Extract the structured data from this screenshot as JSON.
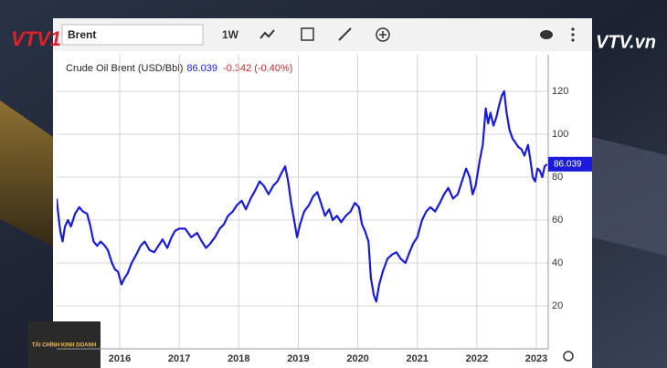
{
  "ui": {
    "search": "Brent",
    "interval": "1W",
    "channel_logo": "VTV1",
    "watermark": "VTV.vn",
    "program": "TÀI CHÍNH KINH DOANH"
  },
  "chart_data": {
    "type": "line",
    "title": "Crude Oil Brent (USD/Bbl)",
    "last_value": 86.039,
    "change_text": "-0.342 (-0.40%)",
    "xlim": [
      2014.94,
      2023.2
    ],
    "xticks": [
      2016,
      2017,
      2018,
      2019,
      2020,
      2021,
      2022,
      2023
    ],
    "ylim": [
      0,
      137
    ],
    "yticks": [
      20,
      40,
      60,
      80,
      100,
      120
    ],
    "grid": true,
    "series": [
      {
        "name": "Brent",
        "color": "#1a1adb",
        "x": [
          2014.94,
          2014.97,
          2015.0,
          2015.04,
          2015.08,
          2015.13,
          2015.18,
          2015.25,
          2015.32,
          2015.38,
          2015.45,
          2015.5,
          2015.56,
          2015.62,
          2015.68,
          2015.75,
          2015.8,
          2015.87,
          2015.92,
          2015.97,
          2016.03,
          2016.08,
          2016.13,
          2016.2,
          2016.28,
          2016.35,
          2016.42,
          2016.5,
          2016.58,
          2016.65,
          2016.72,
          2016.8,
          2016.87,
          2016.93,
          2017.0,
          2017.1,
          2017.2,
          2017.3,
          2017.38,
          2017.45,
          2017.52,
          2017.6,
          2017.68,
          2017.75,
          2017.82,
          2017.9,
          2017.97,
          2018.05,
          2018.12,
          2018.2,
          2018.28,
          2018.35,
          2018.42,
          2018.5,
          2018.58,
          2018.65,
          2018.72,
          2018.78,
          2018.83,
          2018.88,
          2018.93,
          2018.98,
          2019.03,
          2019.1,
          2019.18,
          2019.25,
          2019.32,
          2019.38,
          2019.45,
          2019.52,
          2019.58,
          2019.65,
          2019.72,
          2019.8,
          2019.88,
          2019.95,
          2020.02,
          2020.07,
          2020.12,
          2020.18,
          2020.22,
          2020.27,
          2020.31,
          2020.36,
          2020.42,
          2020.5,
          2020.58,
          2020.65,
          2020.72,
          2020.8,
          2020.87,
          2020.93,
          2021.0,
          2021.08,
          2021.15,
          2021.22,
          2021.3,
          2021.38,
          2021.45,
          2021.52,
          2021.6,
          2021.68,
          2021.75,
          2021.82,
          2021.88,
          2021.93,
          2021.98,
          2022.05,
          2022.1,
          2022.15,
          2022.19,
          2022.23,
          2022.28,
          2022.33,
          2022.38,
          2022.42,
          2022.46,
          2022.5,
          2022.55,
          2022.6,
          2022.65,
          2022.7,
          2022.75,
          2022.8,
          2022.86,
          2022.9,
          2022.94,
          2022.98,
          2023.02,
          2023.06,
          2023.1,
          2023.14,
          2023.18
        ],
        "values": [
          70,
          62,
          55,
          50,
          57,
          60,
          57,
          63,
          66,
          64,
          63,
          58,
          50,
          48,
          50,
          48,
          46,
          40,
          37,
          36,
          30,
          33,
          35,
          40,
          44,
          48,
          50,
          46,
          45,
          48,
          51,
          47,
          52,
          55,
          56,
          56,
          52,
          54,
          50,
          47,
          49,
          52,
          56,
          58,
          62,
          64,
          67,
          69,
          65,
          70,
          74,
          78,
          76,
          72,
          76,
          78,
          82,
          85,
          78,
          68,
          60,
          52,
          58,
          64,
          67,
          71,
          73,
          68,
          62,
          65,
          60,
          62,
          59,
          62,
          64,
          68,
          66,
          58,
          55,
          50,
          33,
          25,
          22,
          30,
          36,
          42,
          44,
          45,
          42,
          40,
          45,
          49,
          52,
          60,
          64,
          66,
          64,
          68,
          72,
          75,
          70,
          72,
          78,
          84,
          80,
          72,
          76,
          88,
          95,
          112,
          105,
          110,
          104,
          108,
          114,
          118,
          120,
          110,
          102,
          98,
          96,
          94,
          93,
          90,
          95,
          88,
          80,
          78,
          84,
          83,
          80,
          85,
          86
        ]
      }
    ]
  }
}
